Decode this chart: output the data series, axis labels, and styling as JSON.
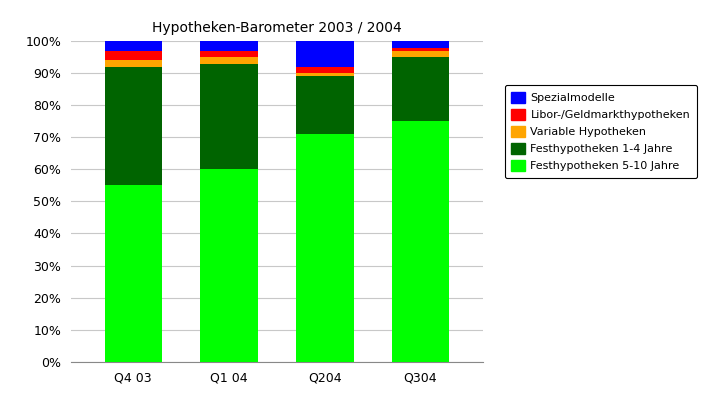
{
  "title": "Hypotheken-Barometer 2003 / 2004",
  "categories": [
    "Q4 03",
    "Q1 04",
    "Q204",
    "Q304"
  ],
  "series": {
    "Festhypotheken 5-10 Jahre": [
      55,
      60,
      71,
      75
    ],
    "Festhypotheken 1-4 Jahre": [
      37,
      33,
      18,
      20
    ],
    "Variable Hypotheken": [
      2,
      2,
      1,
      2
    ],
    "Libor-/Geldmarkthypotheken": [
      3,
      2,
      2,
      1
    ],
    "Spezialmodelle": [
      3,
      3,
      8,
      2
    ]
  },
  "colors": {
    "Festhypotheken 5-10 Jahre": "#00FF00",
    "Festhypotheken 1-4 Jahre": "#006400",
    "Variable Hypotheken": "#FFA500",
    "Libor-/Geldmarkthypotheken": "#FF0000",
    "Spezialmodelle": "#0000FF"
  },
  "ylim": [
    0,
    100
  ],
  "background_color": "#FFFFFF",
  "bar_width": 0.6,
  "title_fontsize": 10,
  "tick_fontsize": 9,
  "legend_order": [
    "Spezialmodelle",
    "Libor-/Geldmarkthypotheken",
    "Variable Hypotheken",
    "Festhypotheken 1-4 Jahre",
    "Festhypotheken 5-10 Jahre"
  ],
  "stack_order": [
    "Festhypotheken 5-10 Jahre",
    "Festhypotheken 1-4 Jahre",
    "Variable Hypotheken",
    "Libor-/Geldmarkthypotheken",
    "Spezialmodelle"
  ],
  "grid_color": "#C8C8C8",
  "axis_color": "#888888"
}
